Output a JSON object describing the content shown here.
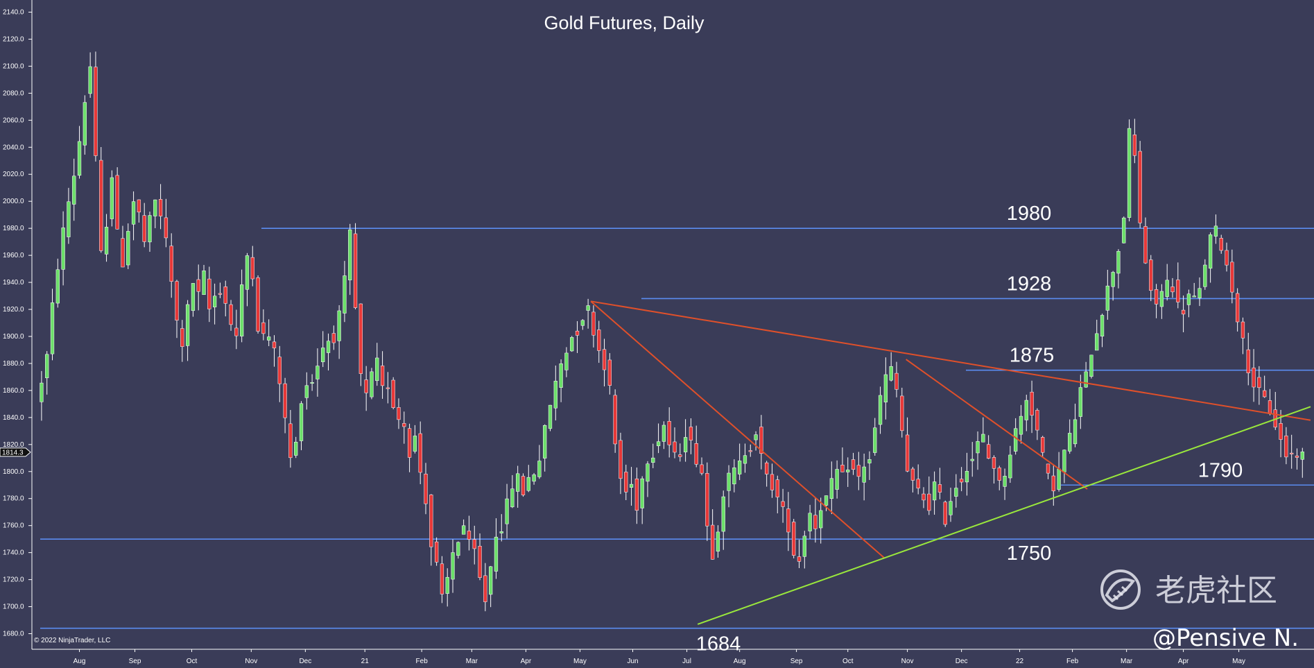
{
  "chart_data": {
    "type": "candlestick",
    "title": "Gold Futures, Daily",
    "ylim": [
      1670,
      2140
    ],
    "y_ticks": [
      "1680.0",
      "1700.0",
      "1720.0",
      "1740.0",
      "1760.0",
      "1780.0",
      "1800.0",
      "1820.0",
      "1840.0",
      "1860.0",
      "1880.0",
      "1900.0",
      "1920.0",
      "1940.0",
      "1960.0",
      "1980.0",
      "2000.0",
      "2020.0",
      "2040.0",
      "2060.0",
      "2080.0",
      "2100.0",
      "2120.0",
      "2140.0"
    ],
    "x_ticks": [
      "Aug",
      "Sep",
      "Oct",
      "Nov",
      "Dec",
      "21",
      "Feb",
      "Mar",
      "Apr",
      "May",
      "Jun",
      "Jul",
      "Aug",
      "Sep",
      "Oct",
      "Nov",
      "Dec",
      "22",
      "Feb",
      "Mar",
      "Apr",
      "May"
    ],
    "current_price": "1814.3",
    "price_path": [
      [
        0,
        1850
      ],
      [
        8,
        1885
      ],
      [
        14,
        1940
      ],
      [
        22,
        1990
      ],
      [
        30,
        2030
      ],
      [
        36,
        2075
      ],
      [
        40,
        2100
      ],
      [
        44,
        2030
      ],
      [
        48,
        1960
      ],
      [
        52,
        1985
      ],
      [
        56,
        2020
      ],
      [
        60,
        1975
      ],
      [
        64,
        1955
      ],
      [
        68,
        1980
      ],
      [
        72,
        2000
      ],
      [
        76,
        1990
      ],
      [
        80,
        1970
      ],
      [
        84,
        1985
      ],
      [
        88,
        2000
      ],
      [
        92,
        1990
      ],
      [
        96,
        1970
      ],
      [
        100,
        1940
      ],
      [
        104,
        1910
      ],
      [
        108,
        1895
      ],
      [
        112,
        1920
      ],
      [
        116,
        1940
      ],
      [
        120,
        1930
      ],
      [
        124,
        1945
      ],
      [
        128,
        1920
      ],
      [
        132,
        1930
      ],
      [
        136,
        1935
      ],
      [
        140,
        1925
      ],
      [
        144,
        1910
      ],
      [
        148,
        1900
      ],
      [
        152,
        1935
      ],
      [
        156,
        1960
      ],
      [
        158,
        1975
      ],
      [
        162,
        1920
      ],
      [
        166,
        1895
      ],
      [
        170,
        1905
      ],
      [
        174,
        1895
      ],
      [
        178,
        1880
      ],
      [
        182,
        1855
      ],
      [
        186,
        1820
      ],
      [
        190,
        1800
      ],
      [
        194,
        1840
      ],
      [
        198,
        1870
      ],
      [
        202,
        1860
      ],
      [
        206,
        1875
      ],
      [
        210,
        1885
      ],
      [
        214,
        1900
      ],
      [
        218,
        1895
      ],
      [
        222,
        1905
      ],
      [
        226,
        1925
      ],
      [
        230,
        1955
      ],
      [
        232,
        1975
      ],
      [
        236,
        1920
      ],
      [
        240,
        1870
      ],
      [
        244,
        1855
      ],
      [
        248,
        1870
      ],
      [
        252,
        1880
      ],
      [
        256,
        1860
      ],
      [
        260,
        1865
      ],
      [
        264,
        1850
      ],
      [
        268,
        1840
      ],
      [
        272,
        1835
      ],
      [
        276,
        1815
      ],
      [
        280,
        1825
      ],
      [
        284,
        1800
      ],
      [
        288,
        1780
      ],
      [
        292,
        1745
      ],
      [
        296,
        1730
      ],
      [
        300,
        1705
      ],
      [
        304,
        1720
      ],
      [
        308,
        1740
      ],
      [
        312,
        1750
      ],
      [
        316,
        1760
      ],
      [
        320,
        1745
      ],
      [
        324,
        1740
      ],
      [
        328,
        1720
      ],
      [
        332,
        1705
      ],
      [
        336,
        1730
      ],
      [
        340,
        1755
      ],
      [
        344,
        1760
      ],
      [
        348,
        1775
      ],
      [
        352,
        1790
      ],
      [
        356,
        1795
      ],
      [
        360,
        1785
      ],
      [
        364,
        1795
      ],
      [
        368,
        1800
      ],
      [
        372,
        1810
      ],
      [
        376,
        1830
      ],
      [
        380,
        1850
      ],
      [
        384,
        1865
      ],
      [
        388,
        1880
      ],
      [
        392,
        1890
      ],
      [
        396,
        1900
      ],
      [
        400,
        1905
      ],
      [
        404,
        1915
      ],
      [
        408,
        1920
      ],
      [
        412,
        1905
      ],
      [
        416,
        1890
      ],
      [
        420,
        1880
      ],
      [
        424,
        1860
      ],
      [
        428,
        1820
      ],
      [
        432,
        1795
      ],
      [
        436,
        1785
      ],
      [
        440,
        1790
      ],
      [
        444,
        1775
      ],
      [
        448,
        1795
      ],
      [
        452,
        1810
      ],
      [
        456,
        1815
      ],
      [
        460,
        1825
      ],
      [
        464,
        1835
      ],
      [
        468,
        1820
      ],
      [
        472,
        1810
      ],
      [
        476,
        1815
      ],
      [
        480,
        1830
      ],
      [
        484,
        1820
      ],
      [
        488,
        1810
      ],
      [
        492,
        1800
      ],
      [
        496,
        1760
      ],
      [
        500,
        1740
      ],
      [
        504,
        1760
      ],
      [
        508,
        1785
      ],
      [
        512,
        1795
      ],
      [
        516,
        1800
      ],
      [
        520,
        1805
      ],
      [
        524,
        1815
      ],
      [
        528,
        1820
      ],
      [
        532,
        1830
      ],
      [
        536,
        1810
      ],
      [
        540,
        1795
      ],
      [
        544,
        1790
      ],
      [
        548,
        1780
      ],
      [
        552,
        1770
      ],
      [
        556,
        1760
      ],
      [
        560,
        1740
      ],
      [
        564,
        1735
      ],
      [
        568,
        1755
      ],
      [
        572,
        1770
      ],
      [
        576,
        1760
      ],
      [
        580,
        1775
      ],
      [
        584,
        1780
      ],
      [
        588,
        1790
      ],
      [
        592,
        1800
      ],
      [
        596,
        1795
      ],
      [
        600,
        1805
      ],
      [
        604,
        1800
      ],
      [
        608,
        1795
      ],
      [
        612,
        1805
      ],
      [
        616,
        1810
      ],
      [
        620,
        1830
      ],
      [
        624,
        1855
      ],
      [
        628,
        1870
      ],
      [
        632,
        1875
      ],
      [
        636,
        1860
      ],
      [
        640,
        1830
      ],
      [
        644,
        1800
      ],
      [
        648,
        1790
      ],
      [
        652,
        1785
      ],
      [
        656,
        1780
      ],
      [
        660,
        1775
      ],
      [
        664,
        1790
      ],
      [
        668,
        1780
      ],
      [
        672,
        1765
      ],
      [
        676,
        1780
      ],
      [
        680,
        1790
      ],
      [
        684,
        1795
      ],
      [
        688,
        1805
      ],
      [
        692,
        1810
      ],
      [
        696,
        1820
      ],
      [
        700,
        1825
      ],
      [
        704,
        1810
      ],
      [
        708,
        1805
      ],
      [
        712,
        1790
      ],
      [
        716,
        1800
      ],
      [
        720,
        1815
      ],
      [
        724,
        1830
      ],
      [
        728,
        1840
      ],
      [
        732,
        1855
      ],
      [
        736,
        1845
      ],
      [
        740,
        1830
      ],
      [
        744,
        1810
      ],
      [
        748,
        1795
      ],
      [
        752,
        1790
      ],
      [
        756,
        1800
      ],
      [
        760,
        1815
      ],
      [
        764,
        1825
      ],
      [
        768,
        1840
      ],
      [
        772,
        1860
      ],
      [
        776,
        1870
      ],
      [
        780,
        1890
      ],
      [
        784,
        1905
      ],
      [
        788,
        1920
      ],
      [
        792,
        1935
      ],
      [
        796,
        1950
      ],
      [
        800,
        1965
      ],
      [
        804,
        1990
      ],
      [
        808,
        2050
      ],
      [
        810,
        2065
      ],
      [
        814,
        2000
      ],
      [
        818,
        1970
      ],
      [
        822,
        1940
      ],
      [
        826,
        1920
      ],
      [
        830,
        1930
      ],
      [
        834,
        1935
      ],
      [
        838,
        1945
      ],
      [
        842,
        1930
      ],
      [
        846,
        1915
      ],
      [
        850,
        1925
      ],
      [
        854,
        1935
      ],
      [
        858,
        1920
      ],
      [
        862,
        1945
      ],
      [
        866,
        1965
      ],
      [
        870,
        1980
      ],
      [
        874,
        1975
      ],
      [
        878,
        1960
      ],
      [
        882,
        1945
      ],
      [
        886,
        1925
      ],
      [
        890,
        1905
      ],
      [
        894,
        1885
      ],
      [
        898,
        1870
      ],
      [
        902,
        1860
      ],
      [
        906,
        1855
      ],
      [
        910,
        1850
      ],
      [
        914,
        1840
      ],
      [
        918,
        1830
      ],
      [
        922,
        1815
      ],
      [
        926,
        1810
      ],
      [
        930,
        1815
      ],
      [
        934,
        1812
      ]
    ],
    "horizontal_levels": [
      {
        "value": 1980,
        "label": "1980"
      },
      {
        "value": 1928,
        "label": "1928"
      },
      {
        "value": 1875,
        "label": "1875"
      },
      {
        "value": 1790,
        "label": "1790"
      },
      {
        "value": 1750,
        "label": "1750"
      },
      {
        "value": 1684,
        "label": "1684"
      }
    ],
    "trendlines": [
      {
        "color": "#e0502a",
        "points": [
          [
            408,
            1926
          ],
          [
            940,
            1838
          ]
        ]
      },
      {
        "color": "#e0502a",
        "points": [
          [
            408,
            1926
          ],
          [
            625,
            1736
          ]
        ]
      },
      {
        "color": "#e0502a",
        "points": [
          [
            641,
            1883
          ],
          [
            775,
            1787
          ]
        ]
      },
      {
        "color": "#9ae83c",
        "points": [
          [
            487,
            1687
          ],
          [
            940,
            1848
          ]
        ]
      }
    ]
  },
  "footer": {
    "copyright": "© 2022 NinjaTrader, LLC"
  },
  "watermark": {
    "brand": "老虎社区",
    "author": "@Pensive N."
  },
  "colors": {
    "background": "#3a3c58",
    "up_candle": "#6ce06a",
    "down_candle": "#e83838",
    "level_line": "#5b8cf0",
    "grid": "#ffffff"
  }
}
